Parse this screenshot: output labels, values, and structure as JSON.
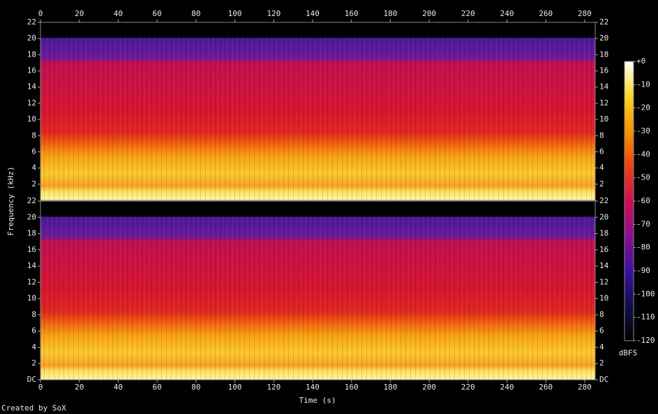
{
  "chart_data": {
    "type": "spectrogram",
    "xlabel": "Time (s)",
    "ylabel": "Frequency (kHz)",
    "xlim": [
      0,
      285.4
    ],
    "xticks": [
      0,
      20,
      40,
      60,
      80,
      100,
      120,
      140,
      160,
      180,
      200,
      220,
      240,
      260,
      280
    ],
    "ylim": [
      0,
      22
    ],
    "channels": [
      {
        "yticks": [
          2,
          4,
          6,
          8,
          10,
          12,
          14,
          16,
          18,
          20,
          22
        ]
      },
      {
        "yticks": [
          {
            "value": 0,
            "label": "DC"
          },
          2,
          4,
          6,
          8,
          10,
          12,
          14,
          16,
          18,
          20,
          22
        ]
      }
    ],
    "colorbar": {
      "label": "dBFS",
      "lim": [
        -120,
        0
      ],
      "ticks": [
        {
          "value": 0,
          "label": "+0"
        },
        -10,
        -20,
        -30,
        -40,
        -50,
        -60,
        -70,
        -80,
        -90,
        -100,
        -110,
        -120
      ],
      "colormap": [
        "#000000",
        "#10104a",
        "#3a10a0",
        "#8a1090",
        "#d01050",
        "#f04010",
        "#f89000",
        "#fcd820",
        "#ffffff"
      ]
    },
    "footer": "Created by SoX"
  }
}
